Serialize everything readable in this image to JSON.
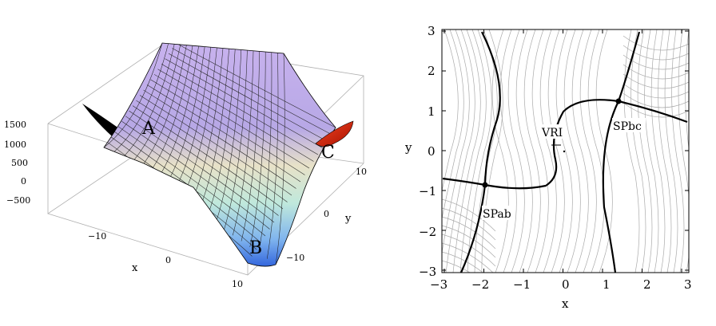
{
  "panel_3d": {
    "z_ticks": [
      "1500",
      "1000",
      "500",
      "0",
      "−500"
    ],
    "x_ticks": [
      "−10",
      "0",
      "10"
    ],
    "y_ticks": [
      "10",
      "0",
      "−10"
    ],
    "x_label": "x",
    "y_label": "y",
    "point_labels": [
      "A",
      "B",
      "C"
    ]
  },
  "panel_contour": {
    "x_ticks": [
      "−3",
      "−2",
      "−1",
      "0",
      "1",
      "2",
      "3"
    ],
    "y_ticks": [
      "3",
      "2",
      "1",
      "0",
      "−1",
      "−2",
      "−3"
    ],
    "x_label": "x",
    "y_label": "y",
    "labels": {
      "vri": "VRI",
      "spab": "SPab",
      "spbc": "SPbc"
    }
  },
  "chart_data": [
    {
      "type": "surface",
      "xlim": [
        -15,
        15
      ],
      "ylim": [
        -15,
        15
      ],
      "zlim": [
        -600,
        1600
      ],
      "z_ticks": [
        1500,
        1000,
        500,
        0,
        -500
      ],
      "x_ticks": [
        -10,
        0,
        10
      ],
      "y_ticks": [
        10,
        0,
        -10
      ],
      "xlabel": "x",
      "ylabel": "y",
      "annotations": [
        "A",
        "B",
        "C"
      ]
    },
    {
      "type": "contour",
      "xlim": [
        -3,
        3
      ],
      "ylim": [
        -3,
        3
      ],
      "x_ticks": [
        -3,
        -2,
        -1,
        0,
        1,
        2,
        3
      ],
      "y_ticks": [
        3,
        2,
        1,
        0,
        -1,
        -2,
        -3
      ],
      "xlabel": "x",
      "ylabel": "y",
      "points": [
        {
          "label": "SPab",
          "x": -1.95,
          "y": -0.8
        },
        {
          "label": "SPbc",
          "x": 1.3,
          "y": 1.2
        },
        {
          "label": "VRI",
          "x": -0.1,
          "y": 0.05
        }
      ]
    }
  ]
}
